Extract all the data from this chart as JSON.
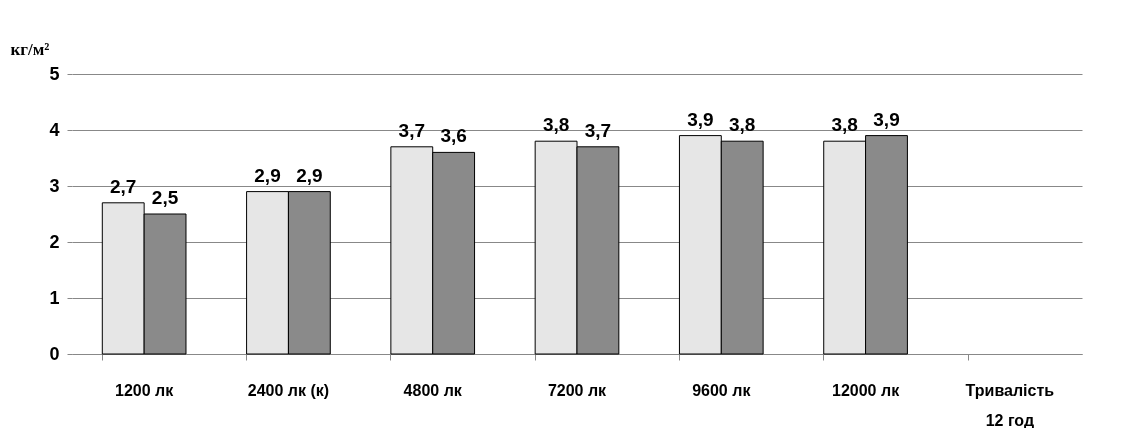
{
  "chart_data": {
    "type": "bar",
    "ylabel": "кг/м²",
    "categories": [
      "1200 лк",
      "2400 лк (к)",
      "4800 лк",
      "7200 лк",
      "9600 лк",
      "12000 лк",
      "Тривалість 12 год"
    ],
    "series": [
      {
        "color": "#e6e6e6",
        "values": [
          2.7,
          2.9,
          3.7,
          3.8,
          3.9,
          3.8,
          null
        ],
        "value_labels": [
          "2,7",
          "2,9",
          "3,7",
          "3,8",
          "3,9",
          "3,8",
          null
        ]
      },
      {
        "color": "#8a8a8a",
        "values": [
          2.5,
          2.9,
          3.6,
          3.7,
          3.8,
          3.9,
          null
        ],
        "value_labels": [
          "2,5",
          "2,9",
          "3,6",
          "3,7",
          "3,8",
          "3,9",
          null
        ]
      }
    ],
    "ylim": [
      0,
      5
    ],
    "yticks": [
      0,
      1,
      2,
      3,
      4,
      5
    ],
    "grid": "y"
  }
}
